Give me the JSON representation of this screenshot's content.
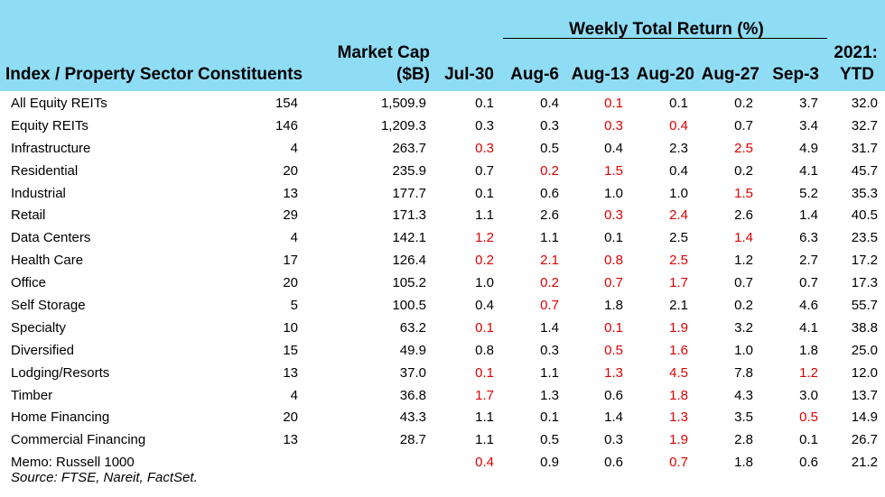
{
  "header": {
    "group_title": "Weekly Total Return (%)",
    "col_sector": "Index / Property Sector",
    "col_constituents": "Constituents",
    "col_marketcap_line1": "Market Cap",
    "col_marketcap_line2": "($B)",
    "weeks": [
      "Jul-30",
      "Aug-6",
      "Aug-13",
      "Aug-20",
      "Aug-27",
      "Sep-3"
    ],
    "col_ytd_line1": "2021:",
    "col_ytd_line2": "YTD"
  },
  "colors": {
    "header_bg": "#8fdcf5",
    "negative": "#e00000"
  },
  "rows": [
    {
      "name": "All Equity REITs",
      "constituents": "154",
      "market_cap": "1,509.9",
      "weekly": [
        "0.1",
        "0.4",
        "0.1",
        "0.1",
        "0.2",
        "3.7"
      ],
      "neg": [
        false,
        false,
        true,
        false,
        false,
        false
      ],
      "ytd": "32.0"
    },
    {
      "name": "Equity REITs",
      "constituents": "146",
      "market_cap": "1,209.3",
      "weekly": [
        "0.3",
        "0.3",
        "0.3",
        "0.4",
        "0.7",
        "3.4"
      ],
      "neg": [
        false,
        false,
        true,
        true,
        false,
        false
      ],
      "ytd": "32.7"
    },
    {
      "name": "Infrastructure",
      "constituents": "4",
      "market_cap": "263.7",
      "weekly": [
        "0.3",
        "0.5",
        "0.4",
        "2.3",
        "2.5",
        "4.9"
      ],
      "neg": [
        true,
        false,
        false,
        false,
        true,
        false
      ],
      "ytd": "31.7"
    },
    {
      "name": "Residential",
      "constituents": "20",
      "market_cap": "235.9",
      "weekly": [
        "0.7",
        "0.2",
        "1.5",
        "0.4",
        "0.2",
        "4.1"
      ],
      "neg": [
        false,
        true,
        true,
        false,
        false,
        false
      ],
      "ytd": "45.7"
    },
    {
      "name": "Industrial",
      "constituents": "13",
      "market_cap": "177.7",
      "weekly": [
        "0.1",
        "0.6",
        "1.0",
        "1.0",
        "1.5",
        "5.2"
      ],
      "neg": [
        false,
        false,
        false,
        false,
        true,
        false
      ],
      "ytd": "35.3"
    },
    {
      "name": "Retail",
      "constituents": "29",
      "market_cap": "171.3",
      "weekly": [
        "1.1",
        "2.6",
        "0.3",
        "2.4",
        "2.6",
        "1.4"
      ],
      "neg": [
        false,
        false,
        true,
        true,
        false,
        false
      ],
      "ytd": "40.5"
    },
    {
      "name": "Data Centers",
      "constituents": "4",
      "market_cap": "142.1",
      "weekly": [
        "1.2",
        "1.1",
        "0.1",
        "2.5",
        "1.4",
        "6.3"
      ],
      "neg": [
        true,
        false,
        false,
        false,
        true,
        false
      ],
      "ytd": "23.5"
    },
    {
      "name": "Health Care",
      "constituents": "17",
      "market_cap": "126.4",
      "weekly": [
        "0.2",
        "2.1",
        "0.8",
        "2.5",
        "1.2",
        "2.7"
      ],
      "neg": [
        true,
        true,
        true,
        true,
        false,
        false
      ],
      "ytd": "17.2"
    },
    {
      "name": "Office",
      "constituents": "20",
      "market_cap": "105.2",
      "weekly": [
        "1.0",
        "0.2",
        "0.7",
        "1.7",
        "0.7",
        "0.7"
      ],
      "neg": [
        false,
        true,
        true,
        true,
        false,
        false
      ],
      "ytd": "17.3"
    },
    {
      "name": "Self Storage",
      "constituents": "5",
      "market_cap": "100.5",
      "weekly": [
        "0.4",
        "0.7",
        "1.8",
        "2.1",
        "0.2",
        "4.6"
      ],
      "neg": [
        false,
        true,
        false,
        false,
        false,
        false
      ],
      "ytd": "55.7"
    },
    {
      "name": "Specialty",
      "constituents": "10",
      "market_cap": "63.2",
      "weekly": [
        "0.1",
        "1.4",
        "0.1",
        "1.9",
        "3.2",
        "4.1"
      ],
      "neg": [
        true,
        false,
        true,
        true,
        false,
        false
      ],
      "ytd": "38.8"
    },
    {
      "name": "Diversified",
      "constituents": "15",
      "market_cap": "49.9",
      "weekly": [
        "0.8",
        "0.3",
        "0.5",
        "1.6",
        "1.0",
        "1.8"
      ],
      "neg": [
        false,
        false,
        true,
        true,
        false,
        false
      ],
      "ytd": "25.0"
    },
    {
      "name": "Lodging/Resorts",
      "constituents": "13",
      "market_cap": "37.0",
      "weekly": [
        "0.1",
        "1.1",
        "1.3",
        "4.5",
        "7.8",
        "1.2"
      ],
      "neg": [
        true,
        false,
        true,
        true,
        false,
        true
      ],
      "ytd": "12.0"
    },
    {
      "name": "Timber",
      "constituents": "4",
      "market_cap": "36.8",
      "weekly": [
        "1.7",
        "1.3",
        "0.6",
        "1.8",
        "4.3",
        "3.0"
      ],
      "neg": [
        true,
        false,
        false,
        true,
        false,
        false
      ],
      "ytd": "13.7"
    },
    {
      "name": "Home Financing",
      "constituents": "20",
      "market_cap": "43.3",
      "weekly": [
        "1.1",
        "0.1",
        "1.4",
        "1.3",
        "3.5",
        "0.5"
      ],
      "neg": [
        false,
        false,
        false,
        true,
        false,
        true
      ],
      "ytd": "14.9"
    },
    {
      "name": "Commercial Financing",
      "constituents": "13",
      "market_cap": "28.7",
      "weekly": [
        "1.1",
        "0.5",
        "0.3",
        "1.9",
        "2.8",
        "0.1"
      ],
      "neg": [
        false,
        false,
        false,
        true,
        false,
        false
      ],
      "ytd": "26.7"
    },
    {
      "name": "Memo: Russell 1000",
      "constituents": "",
      "market_cap": "",
      "weekly": [
        "0.4",
        "0.9",
        "0.6",
        "0.7",
        "1.8",
        "0.6"
      ],
      "neg": [
        true,
        false,
        false,
        true,
        false,
        false
      ],
      "ytd": "21.2"
    }
  ],
  "source": "Source: FTSE, Nareit, FactSet."
}
